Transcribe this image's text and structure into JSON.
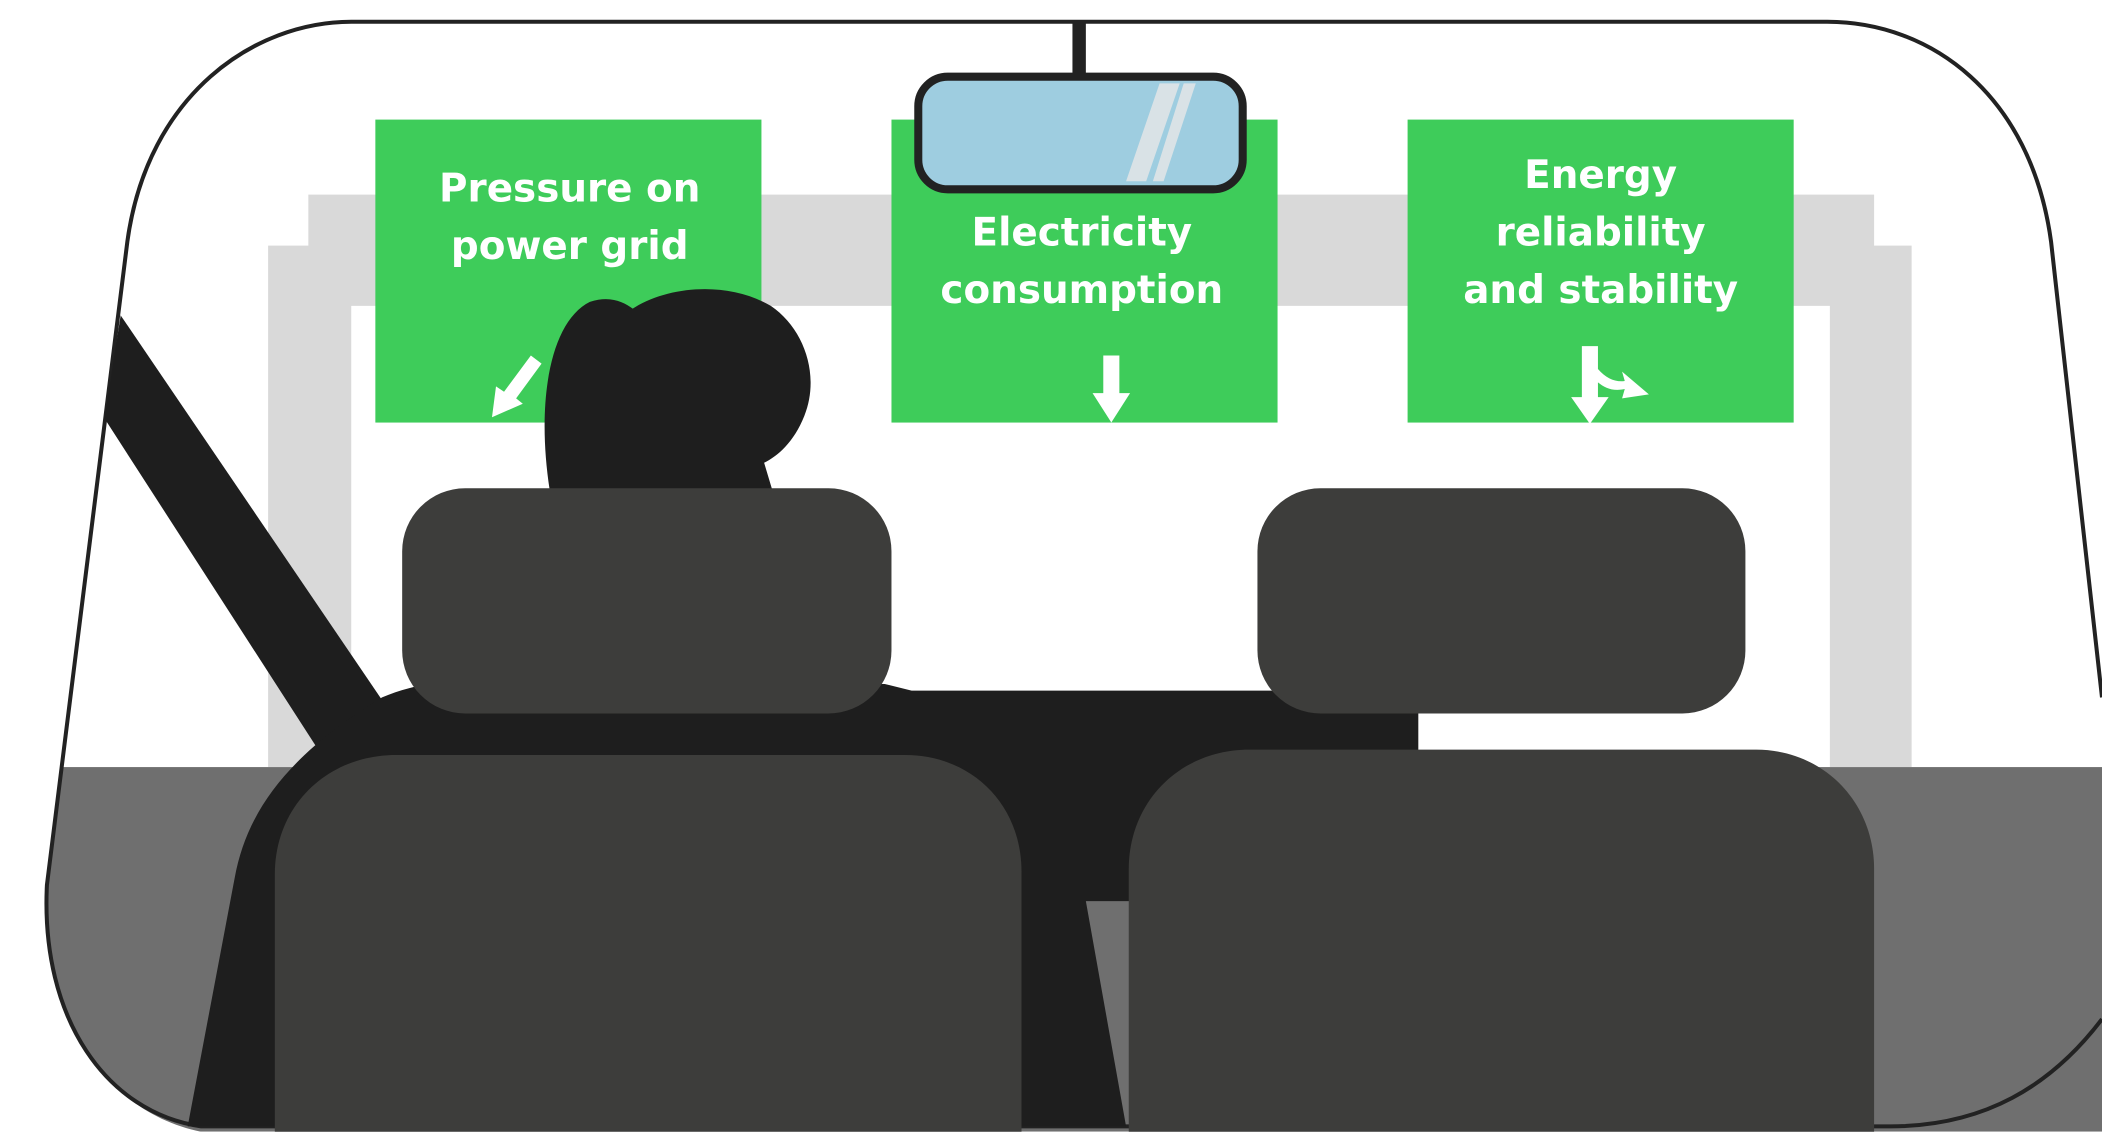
{
  "signs": [
    {
      "lines": [
        "Pressure on",
        "power grid"
      ]
    },
    {
      "lines": [
        "Electricity",
        "consumption"
      ]
    },
    {
      "lines": [
        "Energy",
        "reliability",
        "and stability"
      ]
    }
  ]
}
